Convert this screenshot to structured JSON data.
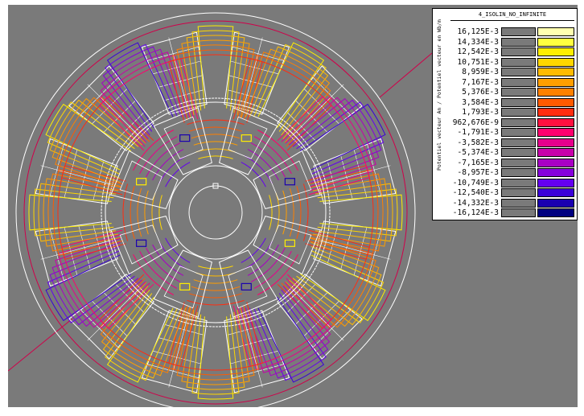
{
  "legend": {
    "title": "4_ISOLIN_NO_INFINITE",
    "axis_label": "Potentiel vecteur An / Potentiel vecteur en Wb/m",
    "levels": [
      {
        "label": "16,125E-3",
        "color": "#ffffb0"
      },
      {
        "label": "14,334E-3",
        "color": "#ffff40"
      },
      {
        "label": "12,542E-3",
        "color": "#ffee00"
      },
      {
        "label": "10,751E-3",
        "color": "#ffd700"
      },
      {
        "label": "8,959E-3",
        "color": "#ffbb00"
      },
      {
        "label": "7,167E-3",
        "color": "#ff9e00"
      },
      {
        "label": "5,376E-3",
        "color": "#ff8000"
      },
      {
        "label": "3,584E-3",
        "color": "#ff5a00"
      },
      {
        "label": "1,793E-3",
        "color": "#ff2d10"
      },
      {
        "label": "962,676E-9",
        "color": "#ff1040"
      },
      {
        "label": "-1,791E-3",
        "color": "#ff006e"
      },
      {
        "label": "-3,582E-3",
        "color": "#e6008c"
      },
      {
        "label": "-5,374E-3",
        "color": "#c800aa"
      },
      {
        "label": "-7,165E-3",
        "color": "#a800c4"
      },
      {
        "label": "-8,957E-3",
        "color": "#8600dc"
      },
      {
        "label": "-10,749E-3",
        "color": "#6400f0"
      },
      {
        "label": "-12,540E-3",
        "color": "#3a00d8"
      },
      {
        "label": "-14,332E-3",
        "color": "#1a00b0"
      },
      {
        "label": "-16,124E-3",
        "color": "#000080"
      }
    ]
  },
  "plot": {
    "background": "#7a7a7a",
    "geometry_color": "#ffffff",
    "stator_slots": 12,
    "rotor_poles": 8
  }
}
